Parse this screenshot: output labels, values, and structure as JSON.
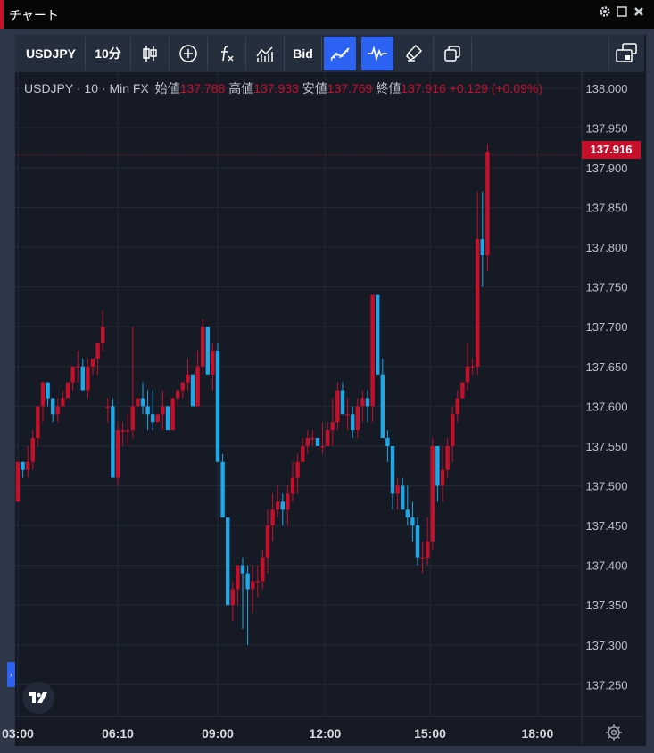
{
  "window": {
    "title": "チャート",
    "controls": [
      "gear-icon",
      "maximize-icon",
      "close-icon"
    ]
  },
  "toolbar": {
    "symbol": "USDJPY",
    "interval": "10分",
    "bid": "Bid"
  },
  "legend": {
    "symbol": "USDJPY",
    "sep1": "·",
    "interval": "10",
    "sep2": "·",
    "source": "Min FX",
    "open_label": "始値",
    "open": "137.788",
    "high_label": "高値",
    "high": "137.933",
    "low_label": "安値",
    "low": "137.769",
    "close_label": "終値",
    "close": "137.916",
    "change": "+0.129 (+0.09%)"
  },
  "price_tag": "137.916",
  "colors": {
    "up": "#c5102c",
    "down": "#1ea8e8",
    "background": "#161a25",
    "grid": "#222836",
    "accent": "#2b62f2"
  },
  "chart_data": {
    "type": "candlestick",
    "symbol": "USDJPY",
    "interval": "10 Min",
    "current_price": 137.916,
    "y_ticks": [
      "138.000",
      "137.950",
      "137.900",
      "137.850",
      "137.800",
      "137.750",
      "137.700",
      "137.650",
      "137.600",
      "137.550",
      "137.500",
      "137.450",
      "137.400",
      "137.350",
      "137.300",
      "137.250"
    ],
    "ylim": [
      137.21,
      138.02
    ],
    "x_ticks": [
      "03:00",
      "06:10",
      "09:00",
      "12:00",
      "15:00",
      "18:00"
    ],
    "x_tick_index": [
      0,
      20,
      40,
      61.5,
      82.5,
      104
    ],
    "candles": [
      [
        137.48,
        137.53,
        137.48,
        137.53
      ],
      [
        137.53,
        137.53,
        137.51,
        137.52
      ],
      [
        137.52,
        137.55,
        137.51,
        137.53
      ],
      [
        137.53,
        137.57,
        137.52,
        137.56
      ],
      [
        137.56,
        137.6,
        137.55,
        137.6
      ],
      [
        137.6,
        137.63,
        137.58,
        137.63
      ],
      [
        137.63,
        137.63,
        137.6,
        137.61
      ],
      [
        137.61,
        137.61,
        137.58,
        137.59
      ],
      [
        137.59,
        137.61,
        137.58,
        137.6
      ],
      [
        137.6,
        137.62,
        137.6,
        137.61
      ],
      [
        137.61,
        137.63,
        137.61,
        137.63
      ],
      [
        137.63,
        137.65,
        137.62,
        137.65
      ],
      [
        137.65,
        137.67,
        137.63,
        137.65
      ],
      [
        137.65,
        137.66,
        137.62,
        137.62
      ],
      [
        137.62,
        137.66,
        137.61,
        137.65
      ],
      [
        137.65,
        137.66,
        137.64,
        137.66
      ],
      [
        137.66,
        137.68,
        137.64,
        137.68
      ],
      [
        137.68,
        137.72,
        137.67,
        137.7
      ],
      [
        137.6,
        137.61,
        137.58,
        137.6
      ],
      [
        137.6,
        137.61,
        137.51,
        137.51
      ],
      [
        137.51,
        137.58,
        137.5,
        137.57
      ],
      [
        137.57,
        137.58,
        137.55,
        137.57
      ],
      [
        137.57,
        137.59,
        137.55,
        137.57
      ],
      [
        137.57,
        137.7,
        137.56,
        137.6
      ],
      [
        137.6,
        137.61,
        137.6,
        137.61
      ],
      [
        137.61,
        137.63,
        137.59,
        137.6
      ],
      [
        137.6,
        137.62,
        137.57,
        137.59
      ],
      [
        137.59,
        137.62,
        137.57,
        137.58
      ],
      [
        137.58,
        137.59,
        137.58,
        137.59
      ],
      [
        137.59,
        137.62,
        137.57,
        137.6
      ],
      [
        137.6,
        137.6,
        137.57,
        137.57
      ],
      [
        137.57,
        137.61,
        137.57,
        137.61
      ],
      [
        137.61,
        137.62,
        137.6,
        137.62
      ],
      [
        137.62,
        137.63,
        137.61,
        137.63
      ],
      [
        137.63,
        137.66,
        137.62,
        137.64
      ],
      [
        137.64,
        137.64,
        137.6,
        137.6
      ],
      [
        137.6,
        137.67,
        137.6,
        137.65
      ],
      [
        137.65,
        137.71,
        137.64,
        137.7
      ],
      [
        137.7,
        137.7,
        137.64,
        137.64
      ],
      [
        137.64,
        137.68,
        137.62,
        137.67
      ],
      [
        137.67,
        137.68,
        137.53,
        137.53
      ],
      [
        137.53,
        137.54,
        137.46,
        137.46
      ],
      [
        137.46,
        137.46,
        137.35,
        137.35
      ],
      [
        137.35,
        137.38,
        137.33,
        137.37
      ],
      [
        137.37,
        137.4,
        137.35,
        137.4
      ],
      [
        137.4,
        137.41,
        137.32,
        137.39
      ],
      [
        137.39,
        137.4,
        137.3,
        137.37
      ],
      [
        137.37,
        137.4,
        137.34,
        137.38
      ],
      [
        137.38,
        137.4,
        137.36,
        137.38
      ],
      [
        137.38,
        137.42,
        137.37,
        137.41
      ],
      [
        137.41,
        137.47,
        137.39,
        137.45
      ],
      [
        137.45,
        137.49,
        137.43,
        137.47
      ],
      [
        137.47,
        137.5,
        137.46,
        137.48
      ],
      [
        137.48,
        137.49,
        137.45,
        137.47
      ],
      [
        137.47,
        137.5,
        137.45,
        137.49
      ],
      [
        137.49,
        137.53,
        137.48,
        137.51
      ],
      [
        137.51,
        137.54,
        137.49,
        137.53
      ],
      [
        137.53,
        137.56,
        137.53,
        137.55
      ],
      [
        137.55,
        137.57,
        137.54,
        137.56
      ],
      [
        137.56,
        137.57,
        137.55,
        137.56
      ],
      [
        137.56,
        137.56,
        137.55,
        137.55
      ],
      [
        137.55,
        137.58,
        137.54,
        137.55
      ],
      [
        137.55,
        137.58,
        137.55,
        137.57
      ],
      [
        137.57,
        137.61,
        137.55,
        137.58
      ],
      [
        137.58,
        137.63,
        137.57,
        137.62
      ],
      [
        137.62,
        137.63,
        137.59,
        137.59
      ],
      [
        137.59,
        137.61,
        137.57,
        137.59
      ],
      [
        137.59,
        137.6,
        137.56,
        137.57
      ],
      [
        137.57,
        137.61,
        137.56,
        137.6
      ],
      [
        137.6,
        137.62,
        137.58,
        137.61
      ],
      [
        137.61,
        137.62,
        137.58,
        137.6
      ],
      [
        137.6,
        137.74,
        137.58,
        137.74
      ],
      [
        137.74,
        137.74,
        137.64,
        137.64
      ],
      [
        137.64,
        137.66,
        137.56,
        137.56
      ],
      [
        137.56,
        137.57,
        137.53,
        137.55
      ],
      [
        137.55,
        137.55,
        137.47,
        137.49
      ],
      [
        137.49,
        137.51,
        137.47,
        137.5
      ],
      [
        137.5,
        137.51,
        137.47,
        137.47
      ],
      [
        137.47,
        137.5,
        137.45,
        137.46
      ],
      [
        137.46,
        137.48,
        137.43,
        137.45
      ],
      [
        137.45,
        137.46,
        137.4,
        137.41
      ],
      [
        137.41,
        137.43,
        137.39,
        137.41
      ],
      [
        137.41,
        137.46,
        137.4,
        137.43
      ],
      [
        137.43,
        137.56,
        137.42,
        137.55
      ],
      [
        137.55,
        137.55,
        137.48,
        137.5
      ],
      [
        137.5,
        137.55,
        137.48,
        137.52
      ],
      [
        137.52,
        137.56,
        137.51,
        137.55
      ],
      [
        137.55,
        137.6,
        137.53,
        137.59
      ],
      [
        137.59,
        137.62,
        137.58,
        137.61
      ],
      [
        137.61,
        137.63,
        137.61,
        137.63
      ],
      [
        137.63,
        137.68,
        137.62,
        137.65
      ],
      [
        137.65,
        137.66,
        137.64,
        137.65
      ],
      [
        137.65,
        137.87,
        137.64,
        137.81
      ],
      [
        137.81,
        137.87,
        137.75,
        137.79
      ],
      [
        137.79,
        137.93,
        137.77,
        137.92
      ]
    ]
  },
  "footer": {
    "settings": "gear-icon"
  }
}
